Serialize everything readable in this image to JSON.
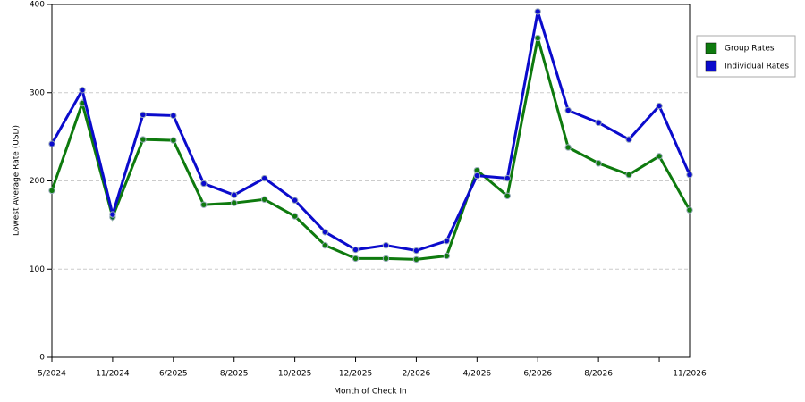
{
  "chart_data": {
    "type": "line",
    "x_label": "Month of Check In",
    "y_label": "Lowest Average Rate (USD)",
    "categories": [
      "5/2024",
      null,
      "11/2024",
      null,
      "6/2025",
      null,
      "8/2025",
      null,
      "10/2025",
      null,
      "12/2025",
      null,
      "2/2026",
      null,
      "4/2026",
      null,
      "6/2026",
      null,
      "8/2026",
      null,
      null,
      "11/2026"
    ],
    "series": [
      {
        "name": "Group Rates",
        "color": "#0e7a0e",
        "values": [
          189,
          288,
          159,
          247,
          246,
          173,
          175,
          179,
          160,
          127,
          112,
          112,
          111,
          115,
          212,
          183,
          362,
          238,
          220,
          207,
          228,
          167
        ]
      },
      {
        "name": "Individual Rates",
        "color": "#0b0bcc",
        "values": [
          242,
          303,
          162,
          275,
          274,
          197,
          184,
          203,
          178,
          142,
          122,
          127,
          121,
          132,
          206,
          203,
          392,
          280,
          266,
          247,
          285,
          207
        ]
      }
    ],
    "ylim": [
      0,
      400
    ],
    "yticks": [
      0,
      100,
      200,
      300,
      400
    ],
    "grid": true,
    "legend": "right"
  }
}
